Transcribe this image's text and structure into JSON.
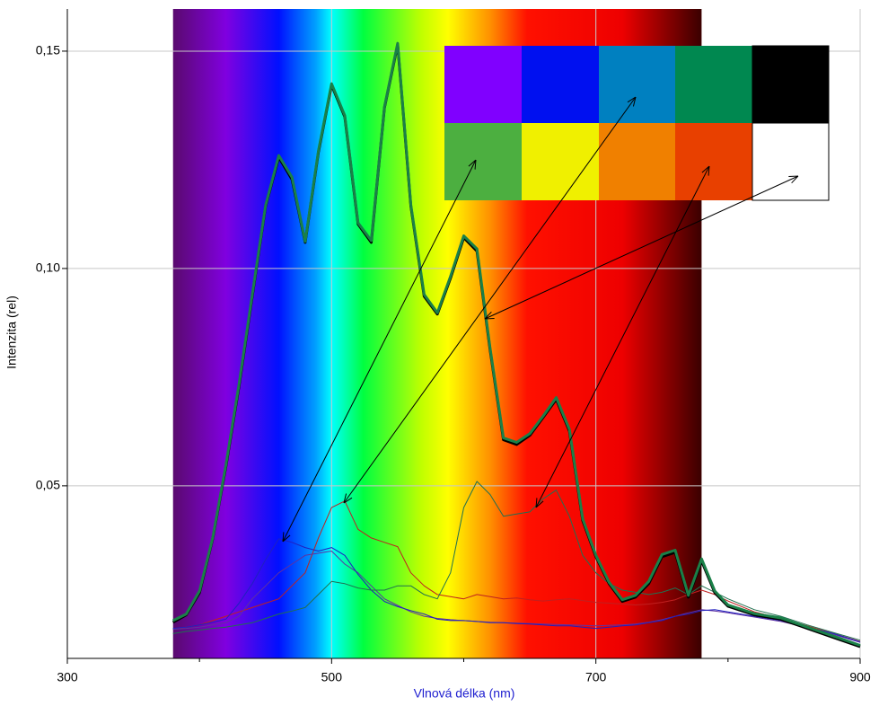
{
  "chart_data": {
    "type": "line",
    "x_label": "Vlnová délka (nm)",
    "y_label": "Intenzita (rel)",
    "xlim": [
      300,
      900
    ],
    "ylim": [
      0.0103,
      0.1597
    ],
    "xticks": [
      300,
      500,
      700,
      900
    ],
    "xminorticks": [
      400,
      600,
      800
    ],
    "yticks": [
      {
        "value": 0.05,
        "label": "0,05"
      },
      {
        "value": 0.1,
        "label": "0,10"
      },
      {
        "value": 0.15,
        "label": "0,15"
      }
    ],
    "grid": true,
    "spectrum_band": [
      380,
      780
    ],
    "x": [
      380,
      390,
      400,
      410,
      420,
      430,
      440,
      450,
      460,
      470,
      480,
      490,
      500,
      510,
      520,
      530,
      540,
      550,
      560,
      570,
      580,
      590,
      600,
      610,
      620,
      630,
      640,
      650,
      660,
      670,
      680,
      690,
      700,
      710,
      720,
      730,
      740,
      750,
      760,
      770,
      780,
      790,
      800,
      820,
      840,
      860,
      880,
      900
    ],
    "series": [
      {
        "color": "#c02020",
        "weight": "normal",
        "values": [
          0.017,
          0.0175,
          0.018,
          0.019,
          0.02,
          0.021,
          0.022,
          0.023,
          0.024,
          0.027,
          0.03,
          0.038,
          0.045,
          0.0465,
          0.04,
          0.038,
          0.037,
          0.036,
          0.03,
          0.027,
          0.025,
          0.0245,
          0.024,
          0.025,
          0.0245,
          0.024,
          0.0242,
          0.0238,
          0.0235,
          0.0238,
          0.024,
          0.0236,
          0.0232,
          0.023,
          0.0228,
          0.0226,
          0.0228,
          0.0232,
          0.0238,
          0.025,
          0.026,
          0.025,
          0.0235,
          0.021,
          0.0195,
          0.0178,
          0.016,
          0.0142
        ]
      },
      {
        "color": "#6030a0",
        "weight": "normal",
        "values": [
          0.017,
          0.0172,
          0.0175,
          0.018,
          0.0185,
          0.02,
          0.024,
          0.027,
          0.03,
          0.032,
          0.034,
          0.0345,
          0.035,
          0.032,
          0.03,
          0.027,
          0.024,
          0.0225,
          0.021,
          0.02,
          0.0195,
          0.0192,
          0.019,
          0.0188,
          0.0186,
          0.0185,
          0.0184,
          0.0183,
          0.0182,
          0.0181,
          0.018,
          0.0179,
          0.0178,
          0.0179,
          0.018,
          0.0182,
          0.0186,
          0.0192,
          0.02,
          0.0208,
          0.0215,
          0.0212,
          0.0208,
          0.0198,
          0.0188,
          0.0174,
          0.0158,
          0.014
        ]
      },
      {
        "color": "#2020c0",
        "weight": "normal",
        "values": [
          0.0172,
          0.0175,
          0.018,
          0.0186,
          0.0193,
          0.023,
          0.0275,
          0.033,
          0.0378,
          0.037,
          0.0358,
          0.035,
          0.0358,
          0.034,
          0.0296,
          0.026,
          0.0234,
          0.0222,
          0.0213,
          0.0205,
          0.0193,
          0.019,
          0.019,
          0.0188,
          0.0185,
          0.0185,
          0.0183,
          0.0182,
          0.018,
          0.0178,
          0.0178,
          0.0175,
          0.0172,
          0.0175,
          0.0178,
          0.018,
          0.0185,
          0.019,
          0.02,
          0.0205,
          0.0213,
          0.0215,
          0.021,
          0.02,
          0.019,
          0.0175,
          0.016,
          0.0141
        ]
      },
      {
        "color": "#207050",
        "weight": "normal",
        "values": [
          0.016,
          0.0165,
          0.0168,
          0.0172,
          0.0175,
          0.018,
          0.0185,
          0.0195,
          0.0205,
          0.0212,
          0.022,
          0.025,
          0.028,
          0.0275,
          0.0265,
          0.026,
          0.026,
          0.027,
          0.027,
          0.025,
          0.024,
          0.03,
          0.045,
          0.051,
          0.048,
          0.043,
          0.0435,
          0.044,
          0.047,
          0.049,
          0.043,
          0.034,
          0.03,
          0.0275,
          0.026,
          0.0255,
          0.025,
          0.0255,
          0.0265,
          0.025,
          0.027,
          0.0255,
          0.024,
          0.0215,
          0.02,
          0.018,
          0.0162,
          0.0145
        ]
      },
      {
        "color": "#000000",
        "weight": "bold",
        "values": [
          0.0186,
          0.0203,
          0.0254,
          0.0378,
          0.0544,
          0.073,
          0.0936,
          0.1143,
          0.1256,
          0.1205,
          0.106,
          0.1267,
          0.1422,
          0.1349,
          0.1102,
          0.106,
          0.137,
          0.1515,
          0.1143,
          0.0936,
          0.0895,
          0.0978,
          0.1071,
          0.104,
          0.0812,
          0.0606,
          0.0595,
          0.0616,
          0.0657,
          0.0699,
          0.0626,
          0.042,
          0.0337,
          0.0275,
          0.0234,
          0.0244,
          0.0275,
          0.0337,
          0.0347,
          0.0244,
          0.0327,
          0.0254,
          0.0223,
          0.0203,
          0.0193,
          0.0172,
          0.0151,
          0.013
        ]
      },
      {
        "color": "#1a8048",
        "weight": "bold",
        "values": [
          0.019,
          0.0205,
          0.0258,
          0.038,
          0.0548,
          0.0735,
          0.094,
          0.1145,
          0.126,
          0.121,
          0.1062,
          0.127,
          0.1425,
          0.1352,
          0.1105,
          0.1064,
          0.1372,
          0.1518,
          0.1146,
          0.094,
          0.0898,
          0.0982,
          0.1075,
          0.1045,
          0.0816,
          0.061,
          0.06,
          0.062,
          0.066,
          0.0703,
          0.063,
          0.0424,
          0.034,
          0.0278,
          0.0238,
          0.0248,
          0.028,
          0.0342,
          0.0352,
          0.0248,
          0.0332,
          0.0258,
          0.0226,
          0.0206,
          0.0196,
          0.0175,
          0.0154,
          0.0133
        ]
      }
    ]
  }
}
